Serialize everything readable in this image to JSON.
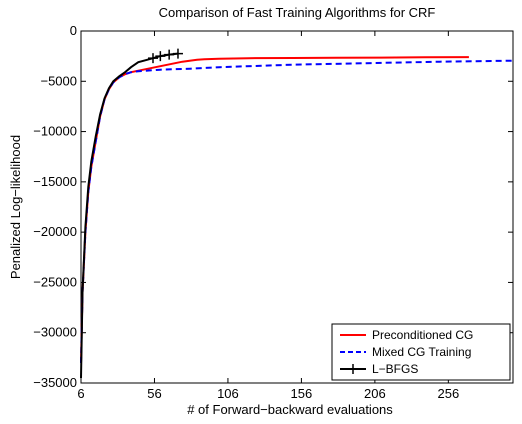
{
  "chart_data": {
    "type": "line",
    "title": "Comparison of Fast Training Algorithms for CRF",
    "xlabel": "# of Forward−backward evaluations",
    "ylabel": "Penalized Log−likelihood",
    "xlim": [
      6,
      300
    ],
    "ylim": [
      -35000,
      0
    ],
    "xticks": [
      6,
      56,
      106,
      156,
      206,
      256
    ],
    "yticks": [
      0,
      -5000,
      -10000,
      -15000,
      -20000,
      -25000,
      -30000,
      -35000
    ],
    "xtick_labels": [
      "6",
      "56",
      "106",
      "156",
      "206",
      "256"
    ],
    "ytick_labels": [
      "0",
      "−5000",
      "−10000",
      "−15000",
      "−20000",
      "−25000",
      "−30000",
      "−35000"
    ],
    "grid": false,
    "legend_position": "bottom-right",
    "series": [
      {
        "name": "Preconditioned CG",
        "color": "#ff0000",
        "style": "solid",
        "marker": "none",
        "x": [
          6,
          7,
          9,
          11,
          13,
          16,
          19,
          22,
          25,
          28,
          32,
          36,
          40,
          45,
          50,
          55,
          60,
          65,
          70,
          75,
          80,
          85,
          90,
          100,
          120,
          150,
          180,
          210,
          240,
          270
        ],
        "y": [
          -33000,
          -26000,
          -20000,
          -16000,
          -13500,
          -11000,
          -8500,
          -6800,
          -5800,
          -5100,
          -4600,
          -4300,
          -4100,
          -3950,
          -3800,
          -3650,
          -3500,
          -3350,
          -3200,
          -3050,
          -2950,
          -2850,
          -2800,
          -2750,
          -2700,
          -2680,
          -2660,
          -2640,
          -2620,
          -2600
        ]
      },
      {
        "name": "Mixed CG Training",
        "color": "#0000ff",
        "style": "dashed",
        "marker": "none",
        "x": [
          6,
          7,
          9,
          11,
          13,
          16,
          19,
          22,
          25,
          28,
          32,
          36,
          40,
          45,
          50,
          60,
          80,
          100,
          150,
          200,
          250,
          300
        ],
        "y": [
          -33000,
          -26000,
          -20000,
          -16000,
          -13500,
          -11000,
          -8500,
          -6800,
          -5800,
          -5100,
          -4600,
          -4300,
          -4100,
          -4000,
          -3950,
          -3850,
          -3750,
          -3600,
          -3350,
          -3200,
          -3050,
          -2950
        ]
      },
      {
        "name": "L−BFGS",
        "color": "#000000",
        "style": "solid",
        "marker": "plus",
        "x": [
          6,
          7,
          9,
          11,
          13,
          16,
          19,
          22,
          25,
          28,
          32,
          36,
          40,
          45,
          50,
          55,
          60,
          66,
          72
        ],
        "y": [
          -34500,
          -26000,
          -19500,
          -15500,
          -13000,
          -10500,
          -8300,
          -6700,
          -5700,
          -5000,
          -4500,
          -4100,
          -3600,
          -3100,
          -2900,
          -2700,
          -2500,
          -2350,
          -2250
        ],
        "marker_indices": [
          15,
          16,
          17,
          18
        ]
      }
    ]
  }
}
